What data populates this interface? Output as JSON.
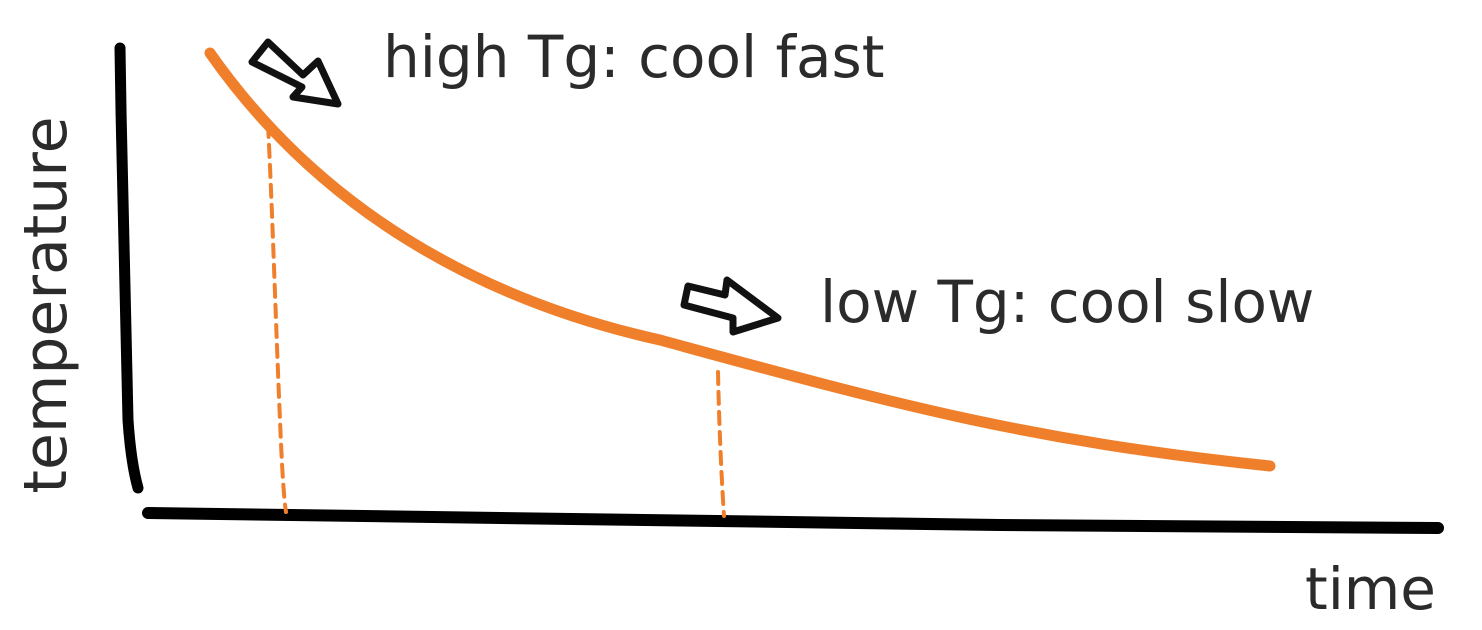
{
  "axes": {
    "y_label": "temperature",
    "x_label": "time"
  },
  "annotations": {
    "high": "high Tg: cool fast",
    "low": "low Tg: cool slow"
  },
  "colors": {
    "curve": "#f07f2b",
    "axis": "#000000",
    "text": "#2b2b2b"
  },
  "icons": {
    "high_arrow": "arrow-down-right-icon",
    "low_arrow": "arrow-right-icon"
  }
}
